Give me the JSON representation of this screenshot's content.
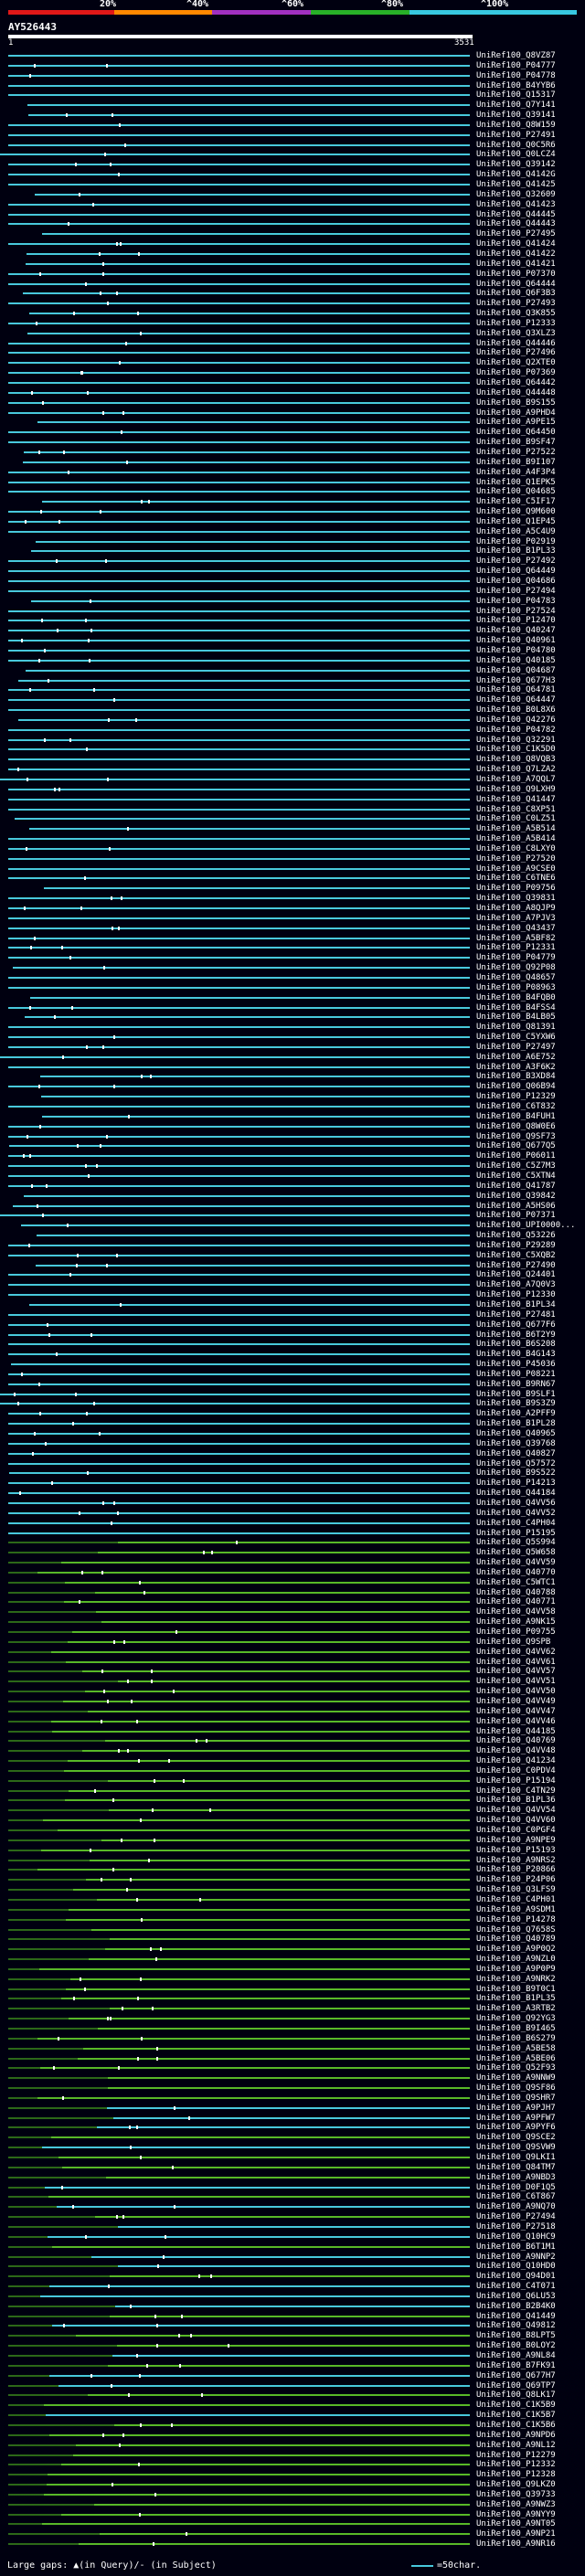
{
  "legend": {
    "labels": [
      "20%",
      "^40%",
      "^60%",
      "^80%",
      "^100%"
    ],
    "colors": [
      "#e01818",
      "#ff8800",
      "#a030c0",
      "#28b028",
      "#38c8e0"
    ]
  },
  "query": {
    "id": "AY526443",
    "start": "1",
    "end": "3531"
  },
  "colors": {
    "cyan": "#48c8dc",
    "green": "#58b828",
    "dark": "#2c6818",
    "background": "#000010"
  },
  "hits": [
    "UniRef100_Q8VZ87",
    "UniRef100_P04777",
    "UniRef100_P04778",
    "UniRef100_B4YYB6",
    "UniRef100_Q15317",
    "UniRef100_Q7Y141",
    "UniRef100_Q39141",
    "UniRef100_Q8W159",
    "UniRef100_P27491",
    "UniRef100_Q0C5R6",
    "UniRef100_Q0LCZ4",
    "UniRef100_Q39142",
    "UniRef100_Q4142G",
    "UniRef100_Q41425",
    "UniRef100_Q32609",
    "UniRef100_Q41423",
    "UniRef100_Q44445",
    "UniRef100_Q44443",
    "UniRef100_P27495",
    "UniRef100_Q41424",
    "UniRef100_Q41422",
    "UniRef100_Q41421",
    "UniRef100_P07370",
    "UniRef100_Q64444",
    "UniRef100_Q6F3B3",
    "UniRef100_P27493",
    "UniRef100_Q3K855",
    "UniRef100_P12333",
    "UniRef100_Q3XLZ3",
    "UniRef100_Q44446",
    "UniRef100_P27496",
    "UniRef100_Q2XTE0",
    "UniRef100_P07369",
    "UniRef100_Q64442",
    "UniRef100_Q44448",
    "UniRef100_B9S155",
    "UniRef100_A9PHD4",
    "UniRef100_A9PE15",
    "UniRef100_Q64450",
    "UniRef100_B9SF47",
    "UniRef100_P27522",
    "UniRef100_B9I107",
    "UniRef100_A4F3P4",
    "UniRef100_Q1EPK5",
    "UniRef100_Q04685",
    "UniRef100_C5IF17",
    "UniRef100_Q9M600",
    "UniRef100_Q1EP45",
    "UniRef100_A5C4U9",
    "UniRef100_P02919",
    "UniRef100_B1PL33",
    "UniRef100_P27492",
    "UniRef100_Q64449",
    "UniRef100_Q04686",
    "UniRef100_P27494",
    "UniRef100_P04783",
    "UniRef100_P27524",
    "UniRef100_P12470",
    "UniRef100_Q40247",
    "UniRef100_Q40961",
    "UniRef100_P04780",
    "UniRef100_Q40185",
    "UniRef100_Q04687",
    "UniRef100_Q677H3",
    "UniRef100_Q64781",
    "UniRef100_Q64447",
    "UniRef100_B0L8X6",
    "UniRef100_Q42276",
    "UniRef100_P04782",
    "UniRef100_Q32291",
    "UniRef100_C1K5D0",
    "UniRef100_Q8VQB3",
    "UniRef100_Q7LZA2",
    "UniRef100_A7QQL7",
    "UniRef100_Q9LXH9",
    "UniRef100_Q41447",
    "UniRef100_C8XP51",
    "UniRef100_C0LZ51",
    "UniRef100_A5B514",
    "UniRef100_A5B414",
    "UniRef100_C8LXY0",
    "UniRef100_P27520",
    "UniRef100_A9CSE0",
    "UniRef100_C6TNE6",
    "UniRef100_P09756",
    "UniRef100_Q39831",
    "UniRef100_A8QJP9",
    "UniRef100_A7PJV3",
    "UniRef100_Q43437",
    "UniRef100_A5BF82",
    "UniRef100_P12331",
    "UniRef100_P04779",
    "UniRef100_Q92P08",
    "UniRef100_Q48657",
    "UniRef100_P08963",
    "UniRef100_B4FQB0",
    "UniRef100_B4FSS4",
    "UniRef100_B4LB05",
    "UniRef100_Q81391",
    "UniRef100_C5YXW6",
    "UniRef100_P27497",
    "UniRef100_A6E752",
    "UniRef100_A3F6K2",
    "UniRef100_B3XD84",
    "UniRef100_Q06B94",
    "UniRef100_P12329",
    "UniRef100_C6T832",
    "UniRef100_B4FUH1",
    "UniRef100_Q8W0E6",
    "UniRef100_Q9SF73",
    "UniRef100_Q677Q5",
    "UniRef100_P06011",
    "UniRef100_C5Z7M3",
    "UniRef100_C5XTN4",
    "UniRef100_Q41787",
    "UniRef100_Q39842",
    "UniRef100_A5HS06",
    "UniRef100_P07371",
    "UniRef100_UPI0000...",
    "UniRef100_Q53226",
    "UniRef100_P29289",
    "UniRef100_C5XQB2",
    "UniRef100_P27490",
    "UniRef100_Q24401",
    "UniRef100_A7Q0V3",
    "UniRef100_P12330",
    "UniRef100_B1PL34",
    "UniRef100_P27481",
    "UniRef100_Q677F6",
    "UniRef100_B6T2Y9",
    "UniRef100_B6S208",
    "UniRef100_B4G143",
    "UniRef100_P45036",
    "UniRef100_P08221",
    "UniRef100_B9RN67",
    "UniRef100_B9SLF1",
    "UniRef100_B9S3Z9",
    "UniRef100_A2PFF9",
    "UniRef100_B1PL28",
    "UniRef100_Q40965",
    "UniRef100_Q39768",
    "UniRef100_Q40827",
    "UniRef100_Q57572",
    "UniRef100_B9S522",
    "UniRef100_P14213",
    "UniRef100_Q44184",
    "UniRef100_Q4VV56",
    "UniRef100_Q4VV52",
    "UniRef100_C4PH04",
    "UniRef100_P15195",
    "UniRef100_Q5S994",
    "UniRef100_Q5W658",
    "UniRef100_Q4VV59",
    "UniRef100_Q40770",
    "UniRef100_C5WTC1",
    "UniRef100_Q40788",
    "UniRef100_Q40771",
    "UniRef100_Q4VV58",
    "UniRef100_A9NK15",
    "UniRef100_P09755",
    "UniRef100_Q9SPB",
    "UniRef100_Q4VV62",
    "UniRef100_Q4VV61",
    "UniRef100_Q4VV57",
    "UniRef100_Q4VV51",
    "UniRef100_Q4VV50",
    "UniRef100_Q4VV49",
    "UniRef100_Q4VV47",
    "UniRef100_Q4VV46",
    "UniRef100_Q44185",
    "UniRef100_Q40769",
    "UniRef100_Q4VV48",
    "UniRef100_Q41234",
    "UniRef100_C0PDV4",
    "UniRef100_P15194",
    "UniRef100_C4TN29",
    "UniRef100_B1PL36",
    "UniRef100_Q4VV54",
    "UniRef100_Q4VV60",
    "UniRef100_C0PGF4",
    "UniRef100_A9NPE9",
    "UniRef100_P15193",
    "UniRef100_A9NRS2",
    "UniRef100_P20866",
    "UniRef100_P24P06",
    "UniRef100_Q3LFS9",
    "UniRef100_C4PH01",
    "UniRef100_A9SDM1",
    "UniRef100_P14278",
    "UniRef100_Q7658S",
    "UniRef100_Q40789",
    "UniRef100_A9P0Q2",
    "UniRef100_A9NZL0",
    "UniRef100_A9P0P9",
    "UniRef100_A9NRK2",
    "UniRef100_B9T0C1",
    "UniRef100_B1PL35",
    "UniRef100_A3RTB2",
    "UniRef100_Q92YG3",
    "UniRef100_B9I465",
    "UniRef100_B6S279",
    "UniRef100_A5BE58",
    "UniRef100_A5BE06",
    "UniRef100_Q52F93",
    "UniRef100_A9NNW9",
    "UniRef100_Q9SF86",
    "UniRef100_Q9SHR7",
    "UniRef100_A9PJH7",
    "UniRef100_A9PFW7",
    "UniRef100_A9PYF6",
    "UniRef100_Q9SCE2",
    "UniRef100_Q9SVW9",
    "UniRef100_Q9LKI1",
    "UniRef100_Q84TM7",
    "UniRef100_A9NBD3",
    "UniRef100_D0F1Q5",
    "UniRef100_C6T867",
    "UniRef100_A9NQ70",
    "UniRef100_P27494",
    "UniRef100_P27518",
    "UniRef100_Q10HC9",
    "UniRef100_B6T1M1",
    "UniRef100_A9NNP2",
    "UniRef100_Q10HD0",
    "UniRef100_Q94D01",
    "UniRef100_C4T071",
    "UniRef100_Q6LU53",
    "UniRef100_B2B4K0",
    "UniRef100_Q41449",
    "UniRef100_Q49812",
    "UniRef100_B8LPT5",
    "UniRef100_B0LOY2",
    "UniRef100_A9NL84",
    "UniRef100_B7FK91",
    "UniRef100_Q677H7",
    "UniRef100_Q69TP7",
    "UniRef100_Q8LK17",
    "UniRef100_C1K5B9",
    "UniRef100_C1K5B7",
    "UniRef100_C1K5B6",
    "UniRef100_A9NPD6",
    "UniRef100_A9NL12",
    "UniRef100_P12279",
    "UniRef100_P12332",
    "UniRef100_P12328",
    "UniRef100_Q9LKZ0",
    "UniRef100_Q39733",
    "UniRef100_A9NWZ3",
    "UniRef100_A9NYY9",
    "UniRef100_A9NT05",
    "UniRef100_A9NP21",
    "UniRef100_A9NR16"
  ],
  "footer": {
    "gaps_text": "Large gaps: ▲(in Query)/- (in Subject)",
    "scale_text": "=50char."
  }
}
